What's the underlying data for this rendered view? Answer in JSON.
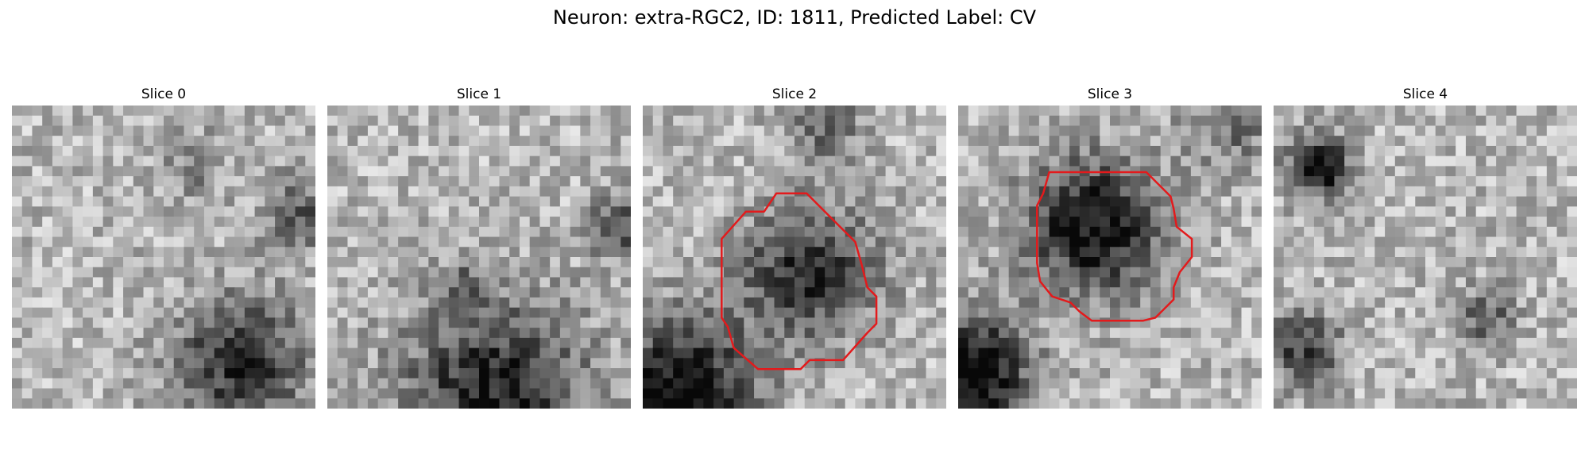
{
  "figure": {
    "title": "Neuron: extra-RGC2, ID: 1811, Predicted Label: CV"
  },
  "panels": [
    {
      "title": "Slice 0",
      "has_contour": false,
      "seed": 11,
      "dark_blobs": [
        [
          0.75,
          0.85,
          0.22,
          0.55
        ],
        [
          0.95,
          0.35,
          0.12,
          0.35
        ],
        [
          0.6,
          0.2,
          0.12,
          0.2
        ]
      ]
    },
    {
      "title": "Slice 1",
      "has_contour": false,
      "seed": 23,
      "dark_blobs": [
        [
          0.55,
          0.95,
          0.3,
          0.6
        ],
        [
          0.97,
          0.4,
          0.1,
          0.45
        ],
        [
          0.45,
          0.6,
          0.08,
          0.25
        ]
      ]
    },
    {
      "title": "Slice 2",
      "has_contour": true,
      "seed": 37,
      "dark_blobs": [
        [
          0.55,
          0.55,
          0.22,
          0.55
        ],
        [
          0.12,
          0.95,
          0.25,
          0.7
        ],
        [
          0.6,
          0.05,
          0.12,
          0.35
        ]
      ]
    },
    {
      "title": "Slice 3",
      "has_contour": true,
      "seed": 51,
      "dark_blobs": [
        [
          0.45,
          0.4,
          0.22,
          0.7
        ],
        [
          0.05,
          0.88,
          0.18,
          0.8
        ],
        [
          0.9,
          0.05,
          0.15,
          0.3
        ]
      ]
    },
    {
      "title": "Slice 4",
      "has_contour": false,
      "seed": 67,
      "dark_blobs": [
        [
          0.15,
          0.2,
          0.1,
          0.75
        ],
        [
          0.1,
          0.8,
          0.12,
          0.5
        ],
        [
          0.7,
          0.7,
          0.1,
          0.35
        ]
      ]
    }
  ],
  "contour_color": "#e31a1c"
}
